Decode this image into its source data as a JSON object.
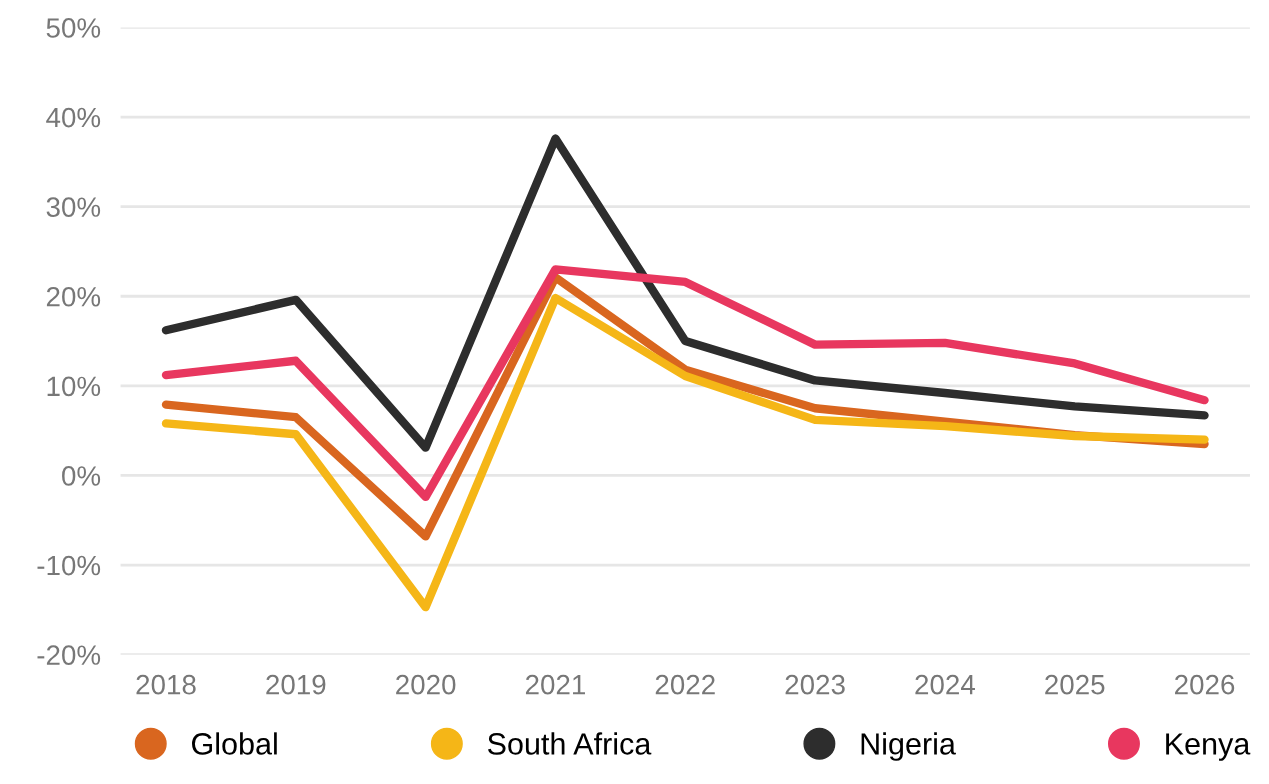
{
  "chart_data": {
    "type": "line",
    "categories": [
      "2018",
      "2019",
      "2020",
      "2021",
      "2022",
      "2023",
      "2024",
      "2025",
      "2026"
    ],
    "series": [
      {
        "name": "Global",
        "color": "#d9661f",
        "values": [
          7.9,
          6.5,
          -6.8,
          22.1,
          11.8,
          7.5,
          6.0,
          4.5,
          3.5
        ]
      },
      {
        "name": "South Africa",
        "color": "#f5b617",
        "values": [
          5.8,
          4.6,
          -14.7,
          19.8,
          11.1,
          6.2,
          5.5,
          4.4,
          4.0
        ]
      },
      {
        "name": "Nigeria",
        "color": "#2d2d2d",
        "values": [
          16.2,
          19.6,
          3.1,
          37.6,
          15.0,
          10.6,
          9.2,
          7.7,
          6.7
        ]
      },
      {
        "name": "Kenya",
        "color": "#e8375f",
        "values": [
          11.2,
          12.8,
          -2.4,
          23.0,
          21.6,
          14.6,
          14.8,
          12.5,
          8.4
        ]
      }
    ],
    "ylim": [
      -20,
      50
    ],
    "yticks": [
      {
        "value": -20,
        "label": "-20%"
      },
      {
        "value": -10,
        "label": "-10%"
      },
      {
        "value": 0,
        "label": "0%"
      },
      {
        "value": 10,
        "label": "10%"
      },
      {
        "value": 20,
        "label": "20%"
      },
      {
        "value": 30,
        "label": "30%"
      },
      {
        "value": 40,
        "label": "40%"
      },
      {
        "value": 50,
        "label": "50%"
      }
    ],
    "grid": "y",
    "legend": "bottom",
    "marker": "none",
    "line_style": "solid"
  }
}
